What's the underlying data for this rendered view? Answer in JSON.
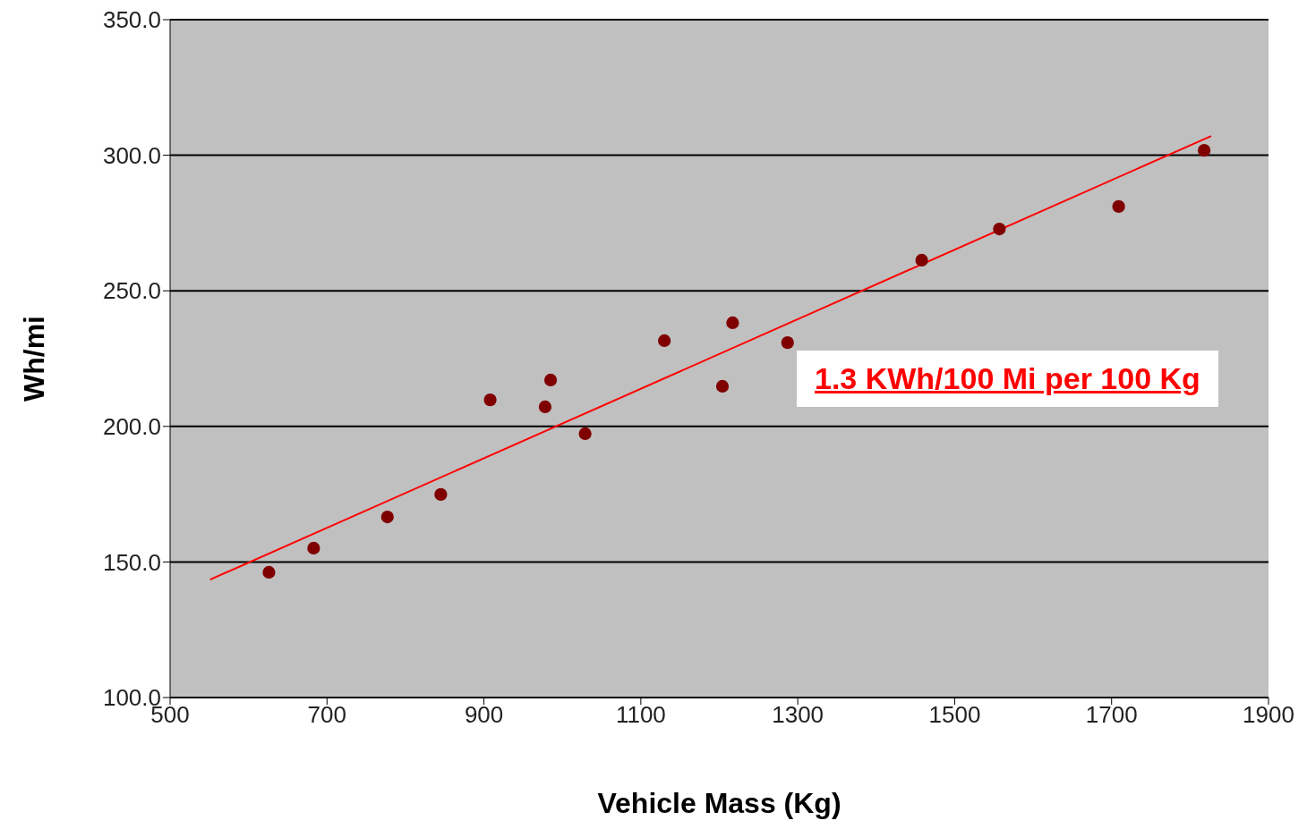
{
  "chart_data": {
    "type": "scatter",
    "xlabel": "Vehicle Mass (Kg)",
    "ylabel": "Wh/mi",
    "annotations": [
      "1.3 KWh/100 Mi per 100 Kg"
    ],
    "series": [
      {
        "color": "#800000",
        "marker": "circle",
        "x": [
          626,
          683,
          777,
          845,
          908,
          978,
          985,
          1029,
          1130,
          1204,
          1217,
          1287,
          1458,
          1557,
          1709,
          1818
        ],
        "values": [
          146.2,
          155.1,
          166.6,
          174.9,
          209.8,
          207.2,
          217.1,
          197.3,
          231.6,
          214.8,
          238.2,
          230.9,
          261.3,
          272.8,
          281.1,
          301.8
        ]
      },
      {
        "type": "line",
        "color": "#ff0000",
        "x": [
          551,
          1827
        ],
        "values": [
          143.5,
          307.1
        ]
      }
    ],
    "xlim": [
      500,
      1900
    ],
    "xticks": [
      500,
      700,
      900,
      1100,
      1300,
      1500,
      1700,
      1900
    ],
    "ylim": [
      100,
      350
    ],
    "yticks": [
      {
        "value": 100,
        "label": "100.0"
      },
      {
        "value": 150,
        "label": "150.0"
      },
      {
        "value": 200,
        "label": "200.0"
      },
      {
        "value": 250,
        "label": "250.0"
      },
      {
        "value": 300,
        "label": "300.0"
      },
      {
        "value": 350,
        "label": "350.0"
      }
    ],
    "grid": "y"
  }
}
